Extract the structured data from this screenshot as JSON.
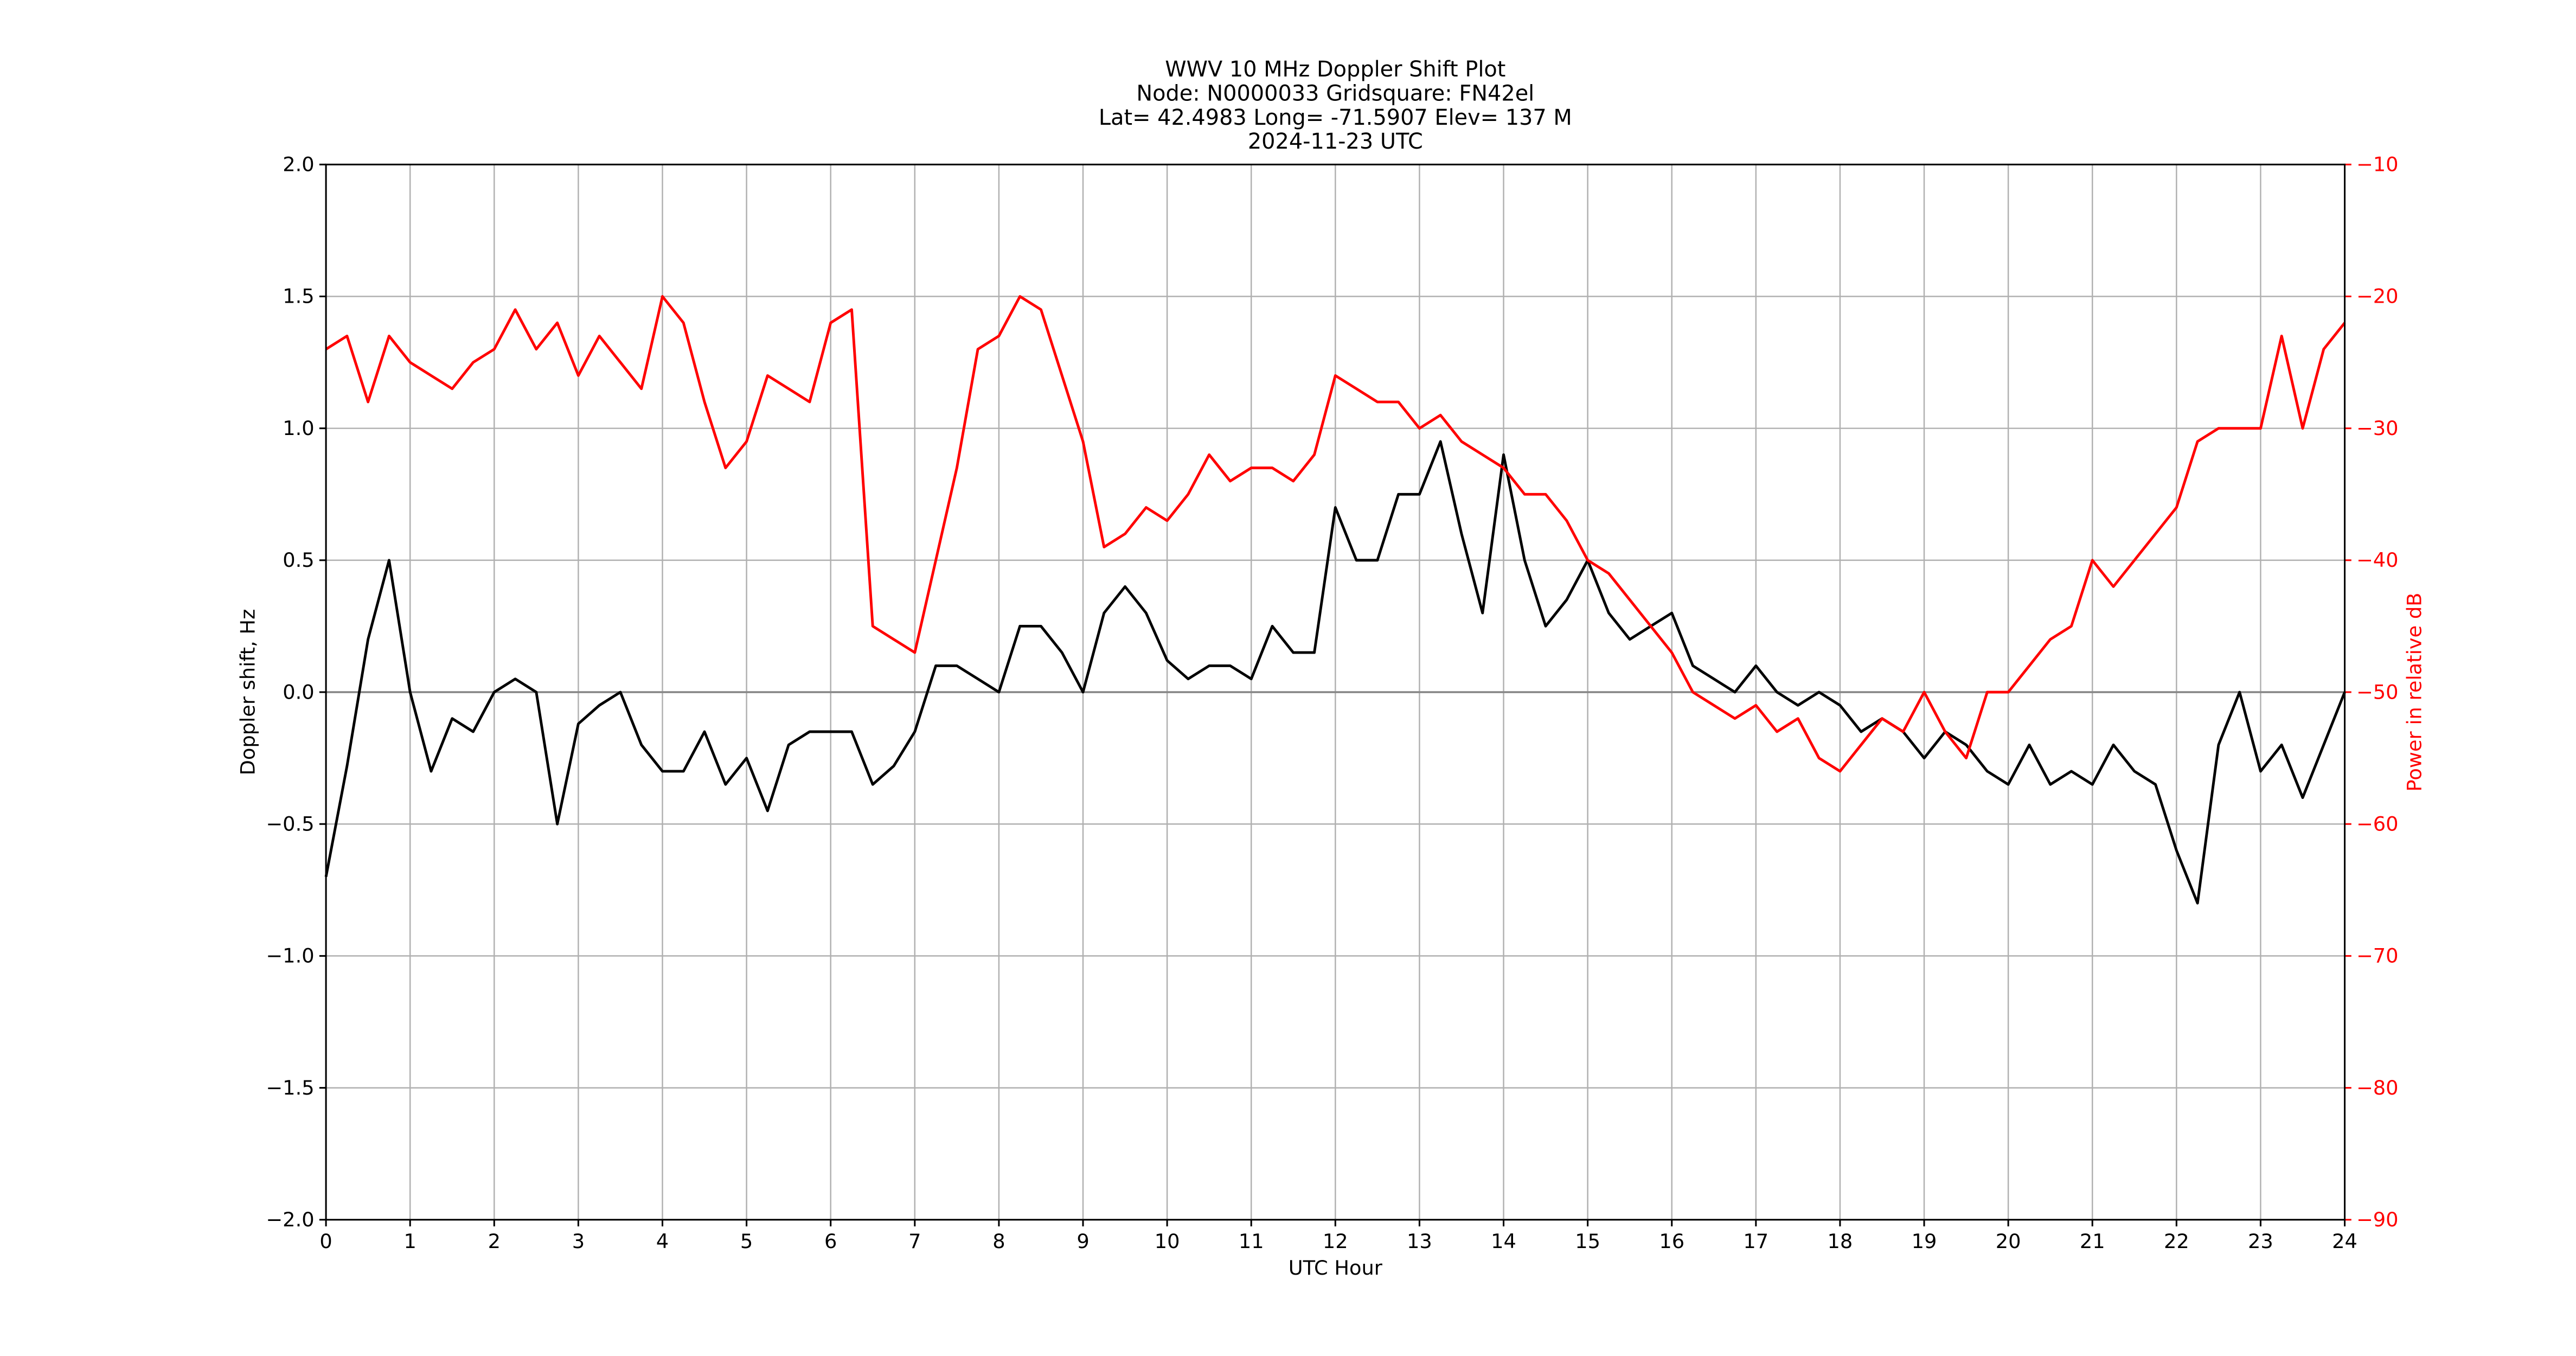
{
  "chart_data": {
    "type": "line",
    "title": [
      "WWV 10 MHz Doppler Shift Plot",
      "Node:  N0000033     Gridsquare:  FN42el",
      "Lat= 42.4983    Long= -71.5907    Elev= 137 M",
      "2024-11-23  UTC"
    ],
    "x_label": "UTC Hour",
    "y_label": "Doppler shift, Hz",
    "y2_label": "Power in relative dB",
    "x": [
      0,
      0.25,
      0.5,
      0.75,
      1,
      1.25,
      1.5,
      1.75,
      2,
      2.25,
      2.5,
      2.75,
      3,
      3.25,
      3.5,
      3.75,
      4,
      4.25,
      4.5,
      4.75,
      5,
      5.25,
      5.5,
      5.75,
      6,
      6.25,
      6.5,
      6.75,
      7,
      7.25,
      7.5,
      7.75,
      8,
      8.25,
      8.5,
      8.75,
      9,
      9.25,
      9.5,
      9.75,
      10,
      10.25,
      10.5,
      10.75,
      11,
      11.25,
      11.5,
      11.75,
      12,
      12.25,
      12.5,
      12.75,
      13,
      13.25,
      13.5,
      13.75,
      14,
      14.25,
      14.5,
      14.75,
      15,
      15.25,
      15.5,
      15.75,
      16,
      16.25,
      16.5,
      16.75,
      17,
      17.25,
      17.5,
      17.75,
      18,
      18.25,
      18.5,
      18.75,
      19,
      19.25,
      19.5,
      19.75,
      20,
      20.25,
      20.5,
      20.75,
      21,
      21.25,
      21.5,
      21.75,
      22,
      22.25,
      22.5,
      22.75,
      23,
      23.25,
      23.5,
      23.75,
      24
    ],
    "series": [
      {
        "name": "Doppler shift",
        "color": "#000000",
        "axis": "y",
        "values": [
          -0.7,
          -0.28,
          0.2,
          0.5,
          0.0,
          -0.3,
          -0.1,
          -0.15,
          0.0,
          0.05,
          0.0,
          -0.5,
          -0.12,
          -0.05,
          0.0,
          -0.2,
          -0.3,
          -0.3,
          -0.15,
          -0.35,
          -0.25,
          -0.45,
          -0.2,
          -0.15,
          -0.15,
          -0.15,
          -0.35,
          -0.28,
          -0.15,
          0.1,
          0.1,
          0.05,
          0.0,
          0.25,
          0.25,
          0.15,
          0.0,
          0.3,
          0.4,
          0.3,
          0.12,
          0.05,
          0.1,
          0.1,
          0.05,
          0.25,
          0.15,
          0.15,
          0.7,
          0.5,
          0.5,
          0.75,
          0.75,
          0.95,
          0.6,
          0.3,
          0.9,
          0.5,
          0.25,
          0.35,
          0.5,
          0.3,
          0.2,
          0.25,
          0.3,
          0.1,
          0.05,
          0.0,
          0.1,
          0.0,
          -0.05,
          0.0,
          -0.05,
          -0.15,
          -0.1,
          -0.15,
          -0.25,
          -0.15,
          -0.2,
          -0.3,
          -0.35,
          -0.2,
          -0.35,
          -0.3,
          -0.35,
          -0.2,
          -0.3,
          -0.35,
          -0.6,
          -0.8,
          -0.2,
          0.0,
          -0.3,
          -0.2,
          -0.4,
          -0.2,
          0.0
        ]
      },
      {
        "name": "Power",
        "color": "#ff0000",
        "axis": "y2",
        "values": [
          -24,
          -23,
          -28,
          -23,
          -25,
          -26,
          -27,
          -25,
          -24,
          -21,
          -24,
          -22,
          -26,
          -23,
          -25,
          -27,
          -20,
          -22,
          -28,
          -33,
          -31,
          -26,
          -27,
          -28,
          -22,
          -21,
          -45,
          -46,
          -47,
          -40,
          -33,
          -24,
          -23,
          -20,
          -21,
          -26,
          -31,
          -39,
          -38,
          -36,
          -37,
          -35,
          -32,
          -34,
          -33,
          -33,
          -34,
          -32,
          -26,
          -27,
          -28,
          -28,
          -30,
          -29,
          -31,
          -32,
          -33,
          -35,
          -35,
          -37,
          -40,
          -41,
          -43,
          -45,
          -47,
          -50,
          -51,
          -52,
          -51,
          -53,
          -52,
          -55,
          -56,
          -54,
          -52,
          -53,
          -50,
          -53,
          -55,
          -50,
          -50,
          -48,
          -46,
          -45,
          -40,
          -42,
          -40,
          -38,
          -36,
          -31,
          -30,
          -30,
          -30,
          -23,
          -30,
          -24,
          -22
        ]
      }
    ],
    "xlim": [
      0,
      24
    ],
    "xticks": [
      0,
      1,
      2,
      3,
      4,
      5,
      6,
      7,
      8,
      9,
      10,
      11,
      12,
      13,
      14,
      15,
      16,
      17,
      18,
      19,
      20,
      21,
      22,
      23,
      24
    ],
    "ylim": [
      -2,
      2
    ],
    "yticks": [
      {
        "value": -2,
        "label": "−2.0"
      },
      {
        "value": -1.5,
        "label": "−1.5"
      },
      {
        "value": -1,
        "label": "−1.0"
      },
      {
        "value": -0.5,
        "label": "−0.5"
      },
      {
        "value": 0,
        "label": "0.0"
      },
      {
        "value": 0.5,
        "label": "0.5"
      },
      {
        "value": 1,
        "label": "1.0"
      },
      {
        "value": 1.5,
        "label": "1.5"
      },
      {
        "value": 2,
        "label": "2.0"
      }
    ],
    "y2lim": [
      -90,
      -10
    ],
    "y2ticks": [
      {
        "value": -90,
        "label": "−90"
      },
      {
        "value": -80,
        "label": "−80"
      },
      {
        "value": -70,
        "label": "−70"
      },
      {
        "value": -60,
        "label": "−60"
      },
      {
        "value": -50,
        "label": "−50"
      },
      {
        "value": -40,
        "label": "−40"
      },
      {
        "value": -30,
        "label": "−30"
      },
      {
        "value": -20,
        "label": "−20"
      },
      {
        "value": -10,
        "label": "−10"
      }
    ],
    "y2_color": "#ff0000",
    "grid": true
  }
}
